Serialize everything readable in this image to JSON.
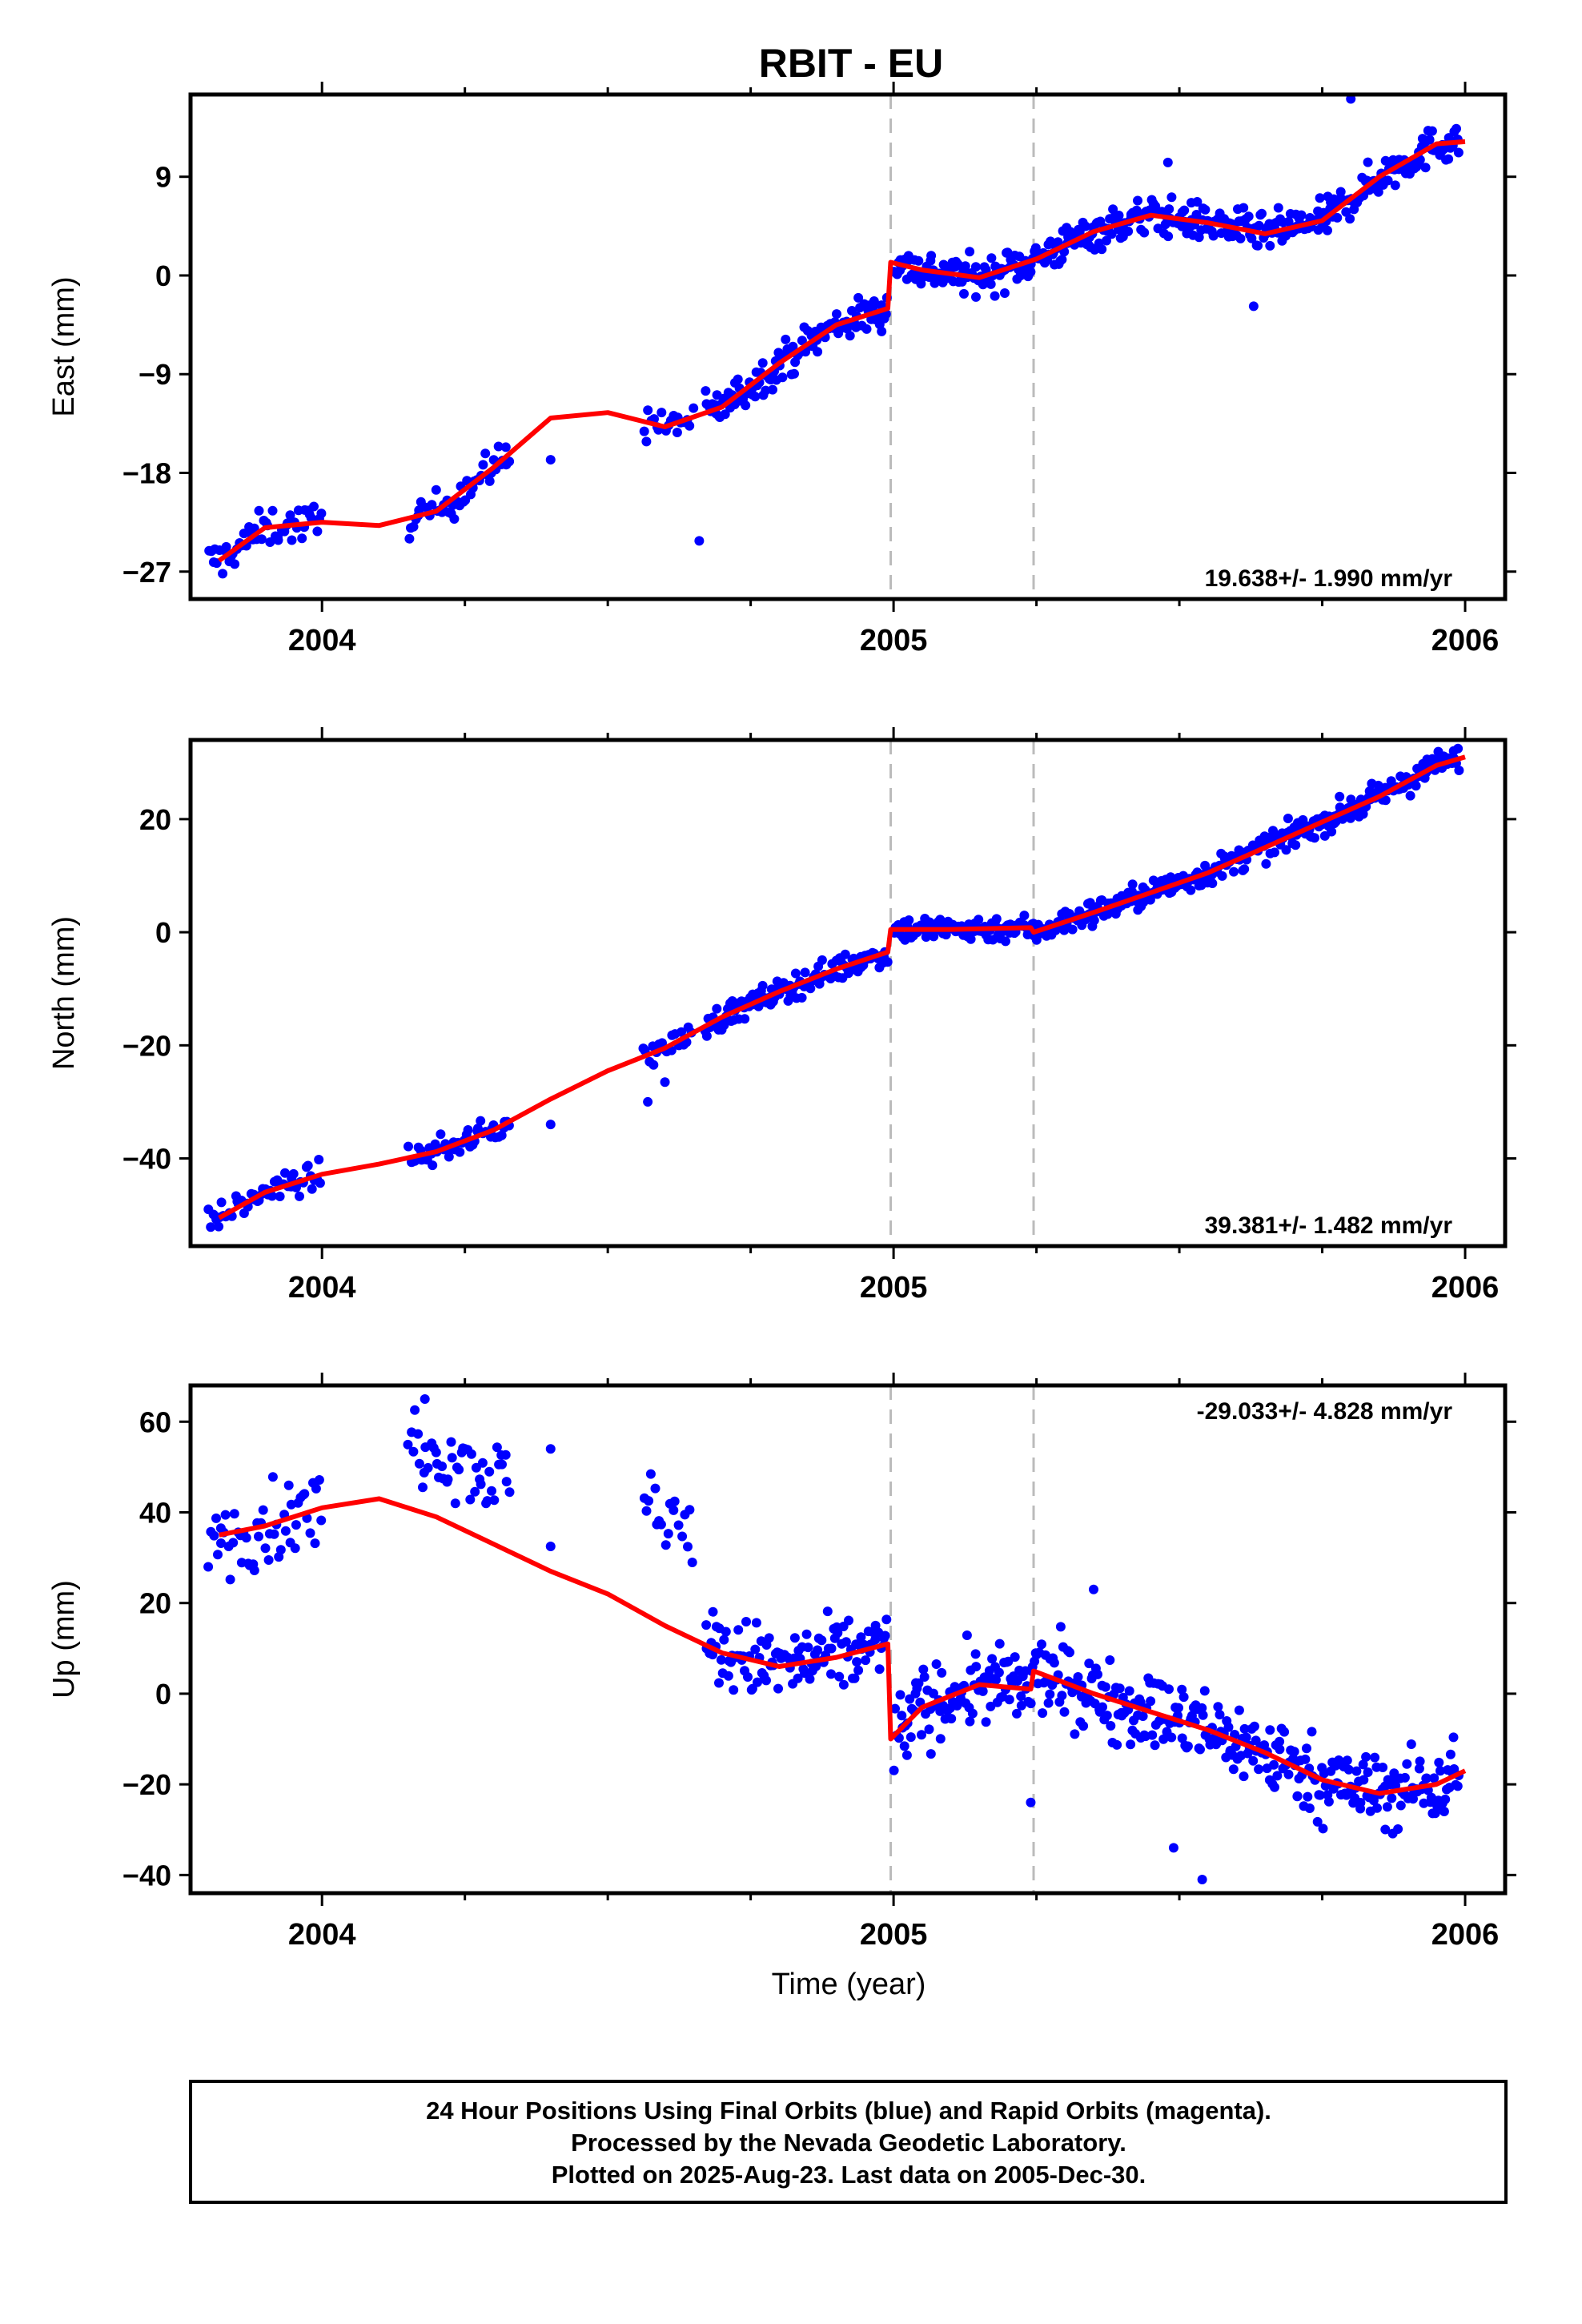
{
  "title": "RBIT - EU",
  "x_axis_label": "Time (year)",
  "footer": {
    "line1": "24 Hour Positions Using Final Orbits (blue) and Rapid Orbits (magenta).",
    "line2": "Processed by the Nevada Geodetic Laboratory.",
    "line3": "Plotted on 2025-Aug-23. Last data on 2005-Dec-30."
  },
  "colors": {
    "points": "#0000ff",
    "fit": "#ff0000",
    "break_lines": "#bbbbbb",
    "frame": "#000000"
  },
  "chart_data": [
    {
      "type": "scatter",
      "ylabel": "East (mm)",
      "rate_annotation": "19.638+/- 1.990 mm/yr",
      "xlim": [
        2003.77,
        2006.07
      ],
      "ylim": [
        -29.5,
        16.5
      ],
      "xticks": [
        2004,
        2005,
        2006
      ],
      "yticks": [
        -27,
        -18,
        -9,
        0,
        9
      ],
      "ytick_labels": [
        "−27",
        "−18",
        "−9",
        "0",
        "9"
      ],
      "breaks": [
        2004.995,
        2005.245
      ],
      "fit": {
        "x": [
          2003.82,
          2003.9,
          2004.0,
          2004.1,
          2004.2,
          2004.3,
          2004.4,
          2004.5,
          2004.6,
          2004.7,
          2004.8,
          2004.9,
          2004.99,
          2004.995,
          2005.05,
          2005.15,
          2005.25,
          2005.35,
          2005.45,
          2005.55,
          2005.65,
          2005.75,
          2005.85,
          2005.95,
          2006.0
        ],
        "y": [
          -26.0,
          -23.0,
          -22.5,
          -22.8,
          -21.5,
          -17.5,
          -13.0,
          -12.5,
          -13.8,
          -12.0,
          -8.0,
          -4.5,
          -3.0,
          1.2,
          0.5,
          -0.2,
          1.5,
          4.0,
          5.5,
          4.8,
          3.8,
          5.0,
          9.0,
          12.0,
          12.2
        ]
      },
      "points": {
        "generated": true,
        "segments": [
          [
            2003.8,
            2004.0,
            5
          ],
          [
            2004.15,
            2004.33,
            5
          ],
          [
            2004.56,
            2004.65,
            4
          ],
          [
            2004.67,
            2004.99,
            7
          ],
          [
            2005.0,
            2005.99,
            8
          ]
        ],
        "noise": 1.2,
        "outliers": [
          [
            2004.4,
            -16.8
          ],
          [
            2004.66,
            -24.2
          ],
          [
            2005.63,
            -2.8
          ],
          [
            2005.48,
            10.3
          ],
          [
            2005.8,
            16.1
          ]
        ]
      }
    },
    {
      "type": "scatter",
      "ylabel": "North (mm)",
      "rate_annotation": "39.381+/- 1.482 mm/yr",
      "xlim": [
        2003.77,
        2006.07
      ],
      "ylim": [
        -55.5,
        34.0
      ],
      "xticks": [
        2004,
        2005,
        2006
      ],
      "yticks": [
        -40,
        -20,
        0,
        20
      ],
      "ytick_labels": [
        "−40",
        "−20",
        "0",
        "20"
      ],
      "breaks": [
        2004.995,
        2005.245
      ],
      "fit": {
        "x": [
          2003.82,
          2003.9,
          2004.0,
          2004.1,
          2004.2,
          2004.3,
          2004.4,
          2004.5,
          2004.6,
          2004.7,
          2004.8,
          2004.9,
          2004.99,
          2004.995,
          2005.1,
          2005.24,
          2005.245,
          2005.35,
          2005.45,
          2005.55,
          2005.65,
          2005.75,
          2005.85,
          2005.95,
          2006.0
        ],
        "y": [
          -50.5,
          -46.0,
          -42.8,
          -41.0,
          -38.8,
          -35.0,
          -29.5,
          -24.5,
          -20.5,
          -15.0,
          -10.5,
          -6.5,
          -3.5,
          0.5,
          0.5,
          0.8,
          0.0,
          3.5,
          7.0,
          10.5,
          15.0,
          19.5,
          24.0,
          29.5,
          31.0
        ]
      },
      "points": {
        "generated": true,
        "segments": [
          [
            2003.8,
            2004.0,
            5
          ],
          [
            2004.15,
            2004.33,
            5
          ],
          [
            2004.56,
            2004.65,
            4
          ],
          [
            2004.67,
            2004.99,
            7
          ],
          [
            2005.0,
            2005.99,
            8
          ]
        ],
        "noise": 1.6,
        "outliers": [
          [
            2004.4,
            -34.0
          ],
          [
            2004.57,
            -30.0
          ],
          [
            2004.6,
            -26.5
          ]
        ]
      }
    },
    {
      "type": "scatter",
      "ylabel": "Up (mm)",
      "rate_annotation": "-29.033+/- 4.828 mm/yr",
      "xlim": [
        2003.77,
        2006.07
      ],
      "ylim": [
        -44.0,
        68.0
      ],
      "xticks": [
        2004,
        2005,
        2006
      ],
      "yticks": [
        -40,
        -20,
        0,
        20,
        40,
        60
      ],
      "ytick_labels": [
        "−40",
        "−20",
        "0",
        "20",
        "40",
        "60"
      ],
      "breaks": [
        2004.995,
        2005.245
      ],
      "fit": {
        "x": [
          2003.82,
          2003.9,
          2004.0,
          2004.1,
          2004.2,
          2004.3,
          2004.4,
          2004.5,
          2004.6,
          2004.7,
          2004.8,
          2004.9,
          2004.99,
          2004.995,
          2005.05,
          2005.15,
          2005.24,
          2005.245,
          2005.35,
          2005.45,
          2005.55,
          2005.65,
          2005.75,
          2005.85,
          2005.95,
          2006.0
        ],
        "y": [
          35.0,
          37.0,
          41.0,
          43.0,
          39.0,
          33.0,
          27.0,
          22.0,
          15.0,
          9.0,
          6.0,
          8.0,
          11.0,
          -10.0,
          -3.0,
          2.0,
          1.0,
          5.0,
          0.0,
          -4.0,
          -8.0,
          -13.0,
          -19.0,
          -22.0,
          -20.0,
          -17.0
        ]
      },
      "points": {
        "generated": true,
        "segments": [
          [
            2003.8,
            2004.0,
            5
          ],
          [
            2004.15,
            2004.33,
            5
          ],
          [
            2004.56,
            2004.65,
            4
          ],
          [
            2004.67,
            2004.99,
            7
          ],
          [
            2005.0,
            2005.99,
            8
          ]
        ],
        "noise": 6.0,
        "offsets": [
          [
            2004.15,
            2004.33,
            15.0
          ],
          [
            2004.56,
            2004.65,
            25.0
          ]
        ],
        "outliers": [
          [
            2004.4,
            54.0
          ],
          [
            2004.4,
            32.5
          ],
          [
            2004.18,
            65.0
          ],
          [
            2005.35,
            23.0
          ],
          [
            2005.54,
            -41.0
          ],
          [
            2005.49,
            -34.0
          ],
          [
            2005.24,
            -24.0
          ]
        ]
      }
    }
  ]
}
